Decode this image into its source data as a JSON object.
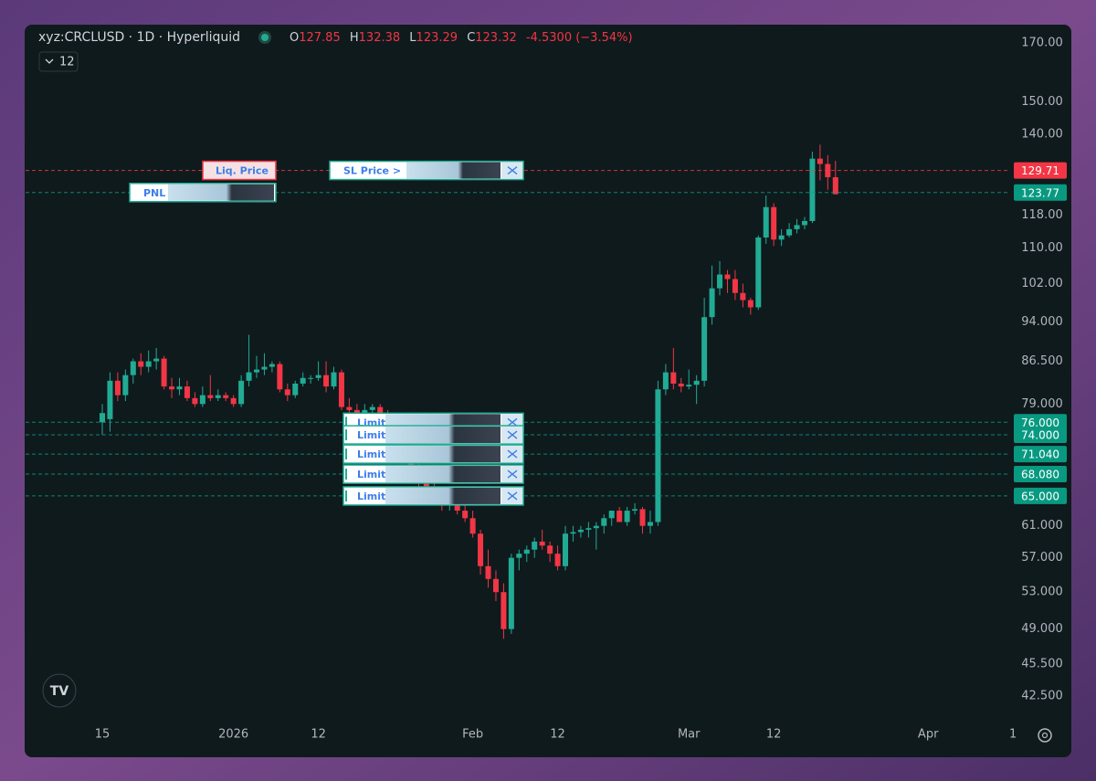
{
  "chart_data": {
    "type": "candlestick",
    "symbol": "xyz:CRCLUSD · 1D · Hyperliquid",
    "ohlc_letters": [
      "O",
      "H",
      "L",
      "C"
    ],
    "change_label": "-4.5300 (−3.54%)",
    "interval_button": "12",
    "log": true,
    "grid": false,
    "up_color": "#22ab94",
    "down_color": "#f23645",
    "ylim": [
      40.26,
      176.4
    ],
    "yticks": [
      {
        "value": 170,
        "label": "170.00"
      },
      {
        "value": 150,
        "label": "150.00"
      },
      {
        "value": 140,
        "label": "140.00"
      },
      {
        "value": 118,
        "label": "118.00"
      },
      {
        "value": 110,
        "label": "110.00"
      },
      {
        "value": 102,
        "label": "102.00"
      },
      {
        "value": 94,
        "label": "94.000"
      },
      {
        "value": 86.5,
        "label": "86.500"
      },
      {
        "value": 79,
        "label": "79.000"
      },
      {
        "value": 61,
        "label": "61.000"
      },
      {
        "value": 57,
        "label": "57.000"
      },
      {
        "value": 53,
        "label": "53.000"
      },
      {
        "value": 49,
        "label": "49.000"
      },
      {
        "value": 45.5,
        "label": "45.500"
      },
      {
        "value": 42.5,
        "label": "42.500"
      }
    ],
    "xlim": [
      -9.94,
      117.51
    ],
    "xticks": [
      {
        "value": 0,
        "label": "15"
      },
      {
        "value": 17,
        "label": "2026"
      },
      {
        "value": 28,
        "label": "12"
      },
      {
        "value": 48,
        "label": "Feb"
      },
      {
        "value": 59,
        "label": "12"
      },
      {
        "value": 76,
        "label": "Mar"
      },
      {
        "value": 87,
        "label": "12"
      },
      {
        "value": 107,
        "label": "Apr"
      },
      {
        "value": 118,
        "label": "1"
      }
    ],
    "price_lines": [
      {
        "value": 129.71,
        "color": "#f23645",
        "orders": [
          "Liq. Price",
          "SL Price >"
        ]
      },
      {
        "value": 123.77,
        "color": "#089981",
        "orders": [
          "PNL"
        ]
      },
      {
        "value": 76,
        "label": "76.000",
        "color": "#089981",
        "orders": [
          "Limit"
        ]
      },
      {
        "value": 74,
        "label": "74.000",
        "color": "#089981",
        "orders": [
          "Limit"
        ]
      },
      {
        "value": 71.04,
        "label": "71.040",
        "color": "#089981",
        "orders": [
          "Limit"
        ]
      },
      {
        "value": 68.08,
        "label": "68.080",
        "color": "#089981",
        "orders": [
          "Limit"
        ]
      },
      {
        "value": 65,
        "label": "65.000",
        "color": "#089981",
        "orders": [
          "Limit"
        ]
      }
    ],
    "candles": [
      [
        76.0,
        79,
        74,
        77.5
      ],
      [
        76.5,
        84.5,
        74.5,
        83
      ],
      [
        83,
        84.5,
        79.5,
        80.5
      ],
      [
        80.5,
        85,
        79.5,
        84
      ],
      [
        84,
        87,
        82.5,
        86.5
      ],
      [
        86.5,
        88,
        84,
        85.5
      ],
      [
        85.5,
        88.5,
        84.5,
        86.5
      ],
      [
        86.5,
        89,
        85,
        87
      ],
      [
        87,
        87.5,
        81.5,
        82
      ],
      [
        82,
        83.5,
        80,
        81.5
      ],
      [
        81.5,
        83.5,
        80.5,
        82
      ],
      [
        82,
        83,
        79.5,
        80
      ],
      [
        80,
        81,
        78.5,
        79
      ],
      [
        79,
        82,
        78.5,
        80.5
      ],
      [
        80.5,
        84,
        79.5,
        80
      ],
      [
        80,
        81.5,
        79.5,
        80.5
      ],
      [
        80.5,
        81,
        79.5,
        80
      ],
      [
        80,
        80.5,
        78.5,
        79
      ],
      [
        79,
        84,
        78.5,
        83
      ],
      [
        83,
        91.5,
        82,
        84.5
      ],
      [
        84.5,
        87.5,
        83.5,
        85
      ],
      [
        85,
        88,
        84,
        85.5
      ],
      [
        85.5,
        86.5,
        84.5,
        86
      ],
      [
        86,
        86.5,
        81,
        81.5
      ],
      [
        81.5,
        82.5,
        79.5,
        80.5
      ],
      [
        80.5,
        83,
        80,
        82.5
      ],
      [
        82.5,
        84.5,
        82,
        83.5
      ],
      [
        83.5,
        84,
        82.5,
        83.5
      ],
      [
        83.5,
        86.5,
        83,
        84
      ],
      [
        84,
        86.5,
        81,
        82
      ],
      [
        82,
        85.5,
        81.5,
        84.5
      ],
      [
        84.5,
        85,
        78,
        78.5
      ],
      [
        78.5,
        80,
        77,
        78
      ],
      [
        78,
        79,
        77,
        77.5
      ],
      [
        77.5,
        79,
        77,
        78
      ],
      [
        78,
        79,
        77.5,
        78.5
      ],
      [
        78.5,
        79,
        76.5,
        77
      ],
      [
        77,
        78,
        74,
        75
      ],
      [
        75,
        76,
        72,
        73
      ],
      [
        73,
        74,
        70,
        71
      ],
      [
        71,
        72,
        68,
        69
      ],
      [
        69,
        70,
        66,
        67
      ],
      [
        67,
        68,
        65,
        66
      ],
      [
        66,
        67,
        64,
        65.5
      ],
      [
        65.5,
        66,
        63,
        64
      ],
      [
        64,
        65.5,
        63,
        65
      ],
      [
        65,
        65.5,
        62.5,
        63
      ],
      [
        63,
        64,
        61.5,
        62
      ],
      [
        62,
        63,
        59.5,
        60
      ],
      [
        60,
        60.5,
        55,
        56
      ],
      [
        56,
        58,
        53.5,
        54.5
      ],
      [
        54.5,
        55.5,
        52,
        53
      ],
      [
        53,
        54,
        48,
        49
      ],
      [
        49,
        57.5,
        48.5,
        57
      ],
      [
        57,
        58,
        55.5,
        57.5
      ],
      [
        57.5,
        58.5,
        56.5,
        58
      ],
      [
        58,
        59.5,
        57,
        59
      ],
      [
        59,
        60.5,
        58,
        58.5
      ],
      [
        58.5,
        59,
        56.5,
        57.5
      ],
      [
        57.5,
        58.5,
        55.5,
        56
      ],
      [
        56,
        61,
        55.5,
        60
      ],
      [
        60,
        61,
        59,
        60.2
      ],
      [
        60.2,
        61,
        59.5,
        60.5
      ],
      [
        60.5,
        61.5,
        59.5,
        60.7
      ],
      [
        60.7,
        61.5,
        58,
        61
      ],
      [
        61,
        62.5,
        60,
        62
      ],
      [
        62,
        63,
        61,
        63
      ],
      [
        63,
        63.5,
        61.5,
        61.5
      ],
      [
        61.5,
        63.5,
        61,
        63
      ],
      [
        63,
        64,
        62.5,
        63.2
      ],
      [
        63.2,
        63.5,
        60,
        61
      ],
      [
        61,
        63,
        60,
        61.5
      ],
      [
        61.5,
        83,
        61,
        81.5
      ],
      [
        81.5,
        86,
        80.5,
        84.5
      ],
      [
        84.5,
        89,
        81.5,
        82.5
      ],
      [
        82.5,
        83.5,
        81,
        82
      ],
      [
        82,
        85,
        81.5,
        82.3
      ],
      [
        82.3,
        84,
        79,
        83
      ],
      [
        83,
        99,
        82,
        95
      ],
      [
        95,
        106,
        93.5,
        101
      ],
      [
        101,
        107,
        99.5,
        104
      ],
      [
        104,
        105,
        100,
        103
      ],
      [
        103,
        105,
        98.5,
        100
      ],
      [
        100,
        102,
        97,
        98.5
      ],
      [
        98.5,
        99,
        95.5,
        97
      ],
      [
        97,
        113,
        96.5,
        112.5
      ],
      [
        112.5,
        123,
        111,
        120
      ],
      [
        120,
        121,
        110.5,
        112
      ],
      [
        112,
        114.5,
        110.5,
        113
      ],
      [
        113,
        116,
        112.5,
        114.5
      ],
      [
        114.5,
        117,
        113.5,
        115.5
      ],
      [
        115.5,
        117.5,
        114.5,
        116.5
      ],
      [
        116.5,
        135,
        116,
        133
      ],
      [
        133,
        137,
        127,
        131.5
      ],
      [
        131.5,
        134,
        124.5,
        127.85
      ],
      [
        127.85,
        132.38,
        123.29,
        123.32
      ]
    ]
  }
}
